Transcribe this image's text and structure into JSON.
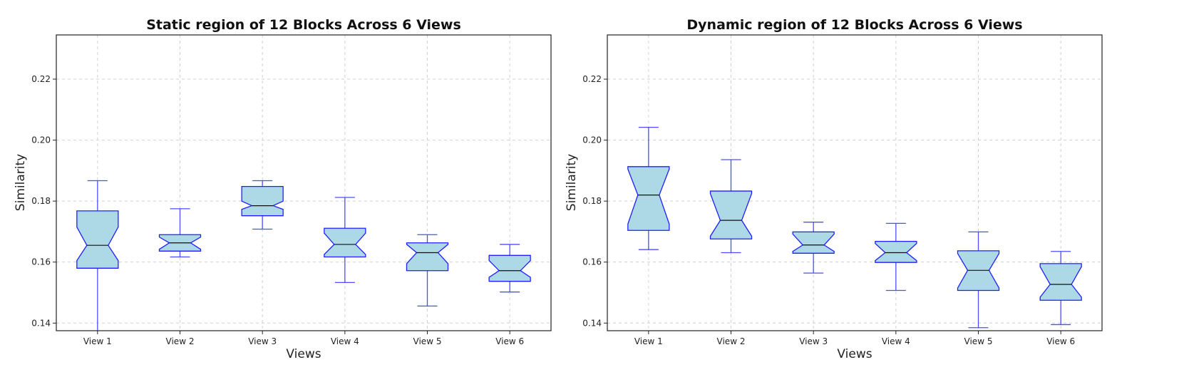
{
  "chart_data": [
    {
      "type": "box",
      "notched": true,
      "title": "Static region of 12 Blocks Across 6 Views",
      "xlabel": "Views",
      "ylabel": "Similarity",
      "categories": [
        "View 1",
        "View 2",
        "View 3",
        "View 4",
        "View 5",
        "View 6"
      ],
      "yticks": [
        0.14,
        0.16,
        0.18,
        0.2,
        0.22
      ],
      "ytick_labels": [
        "0.14",
        "0.16",
        "0.18",
        "0.20",
        "0.22"
      ],
      "ylim": [
        0.1375,
        0.2345
      ],
      "grid": true,
      "boxes": [
        {
          "category": "View 1",
          "whisker_low": 0.137,
          "q1": 0.158,
          "median": 0.1655,
          "q3": 0.1768,
          "whisker_high": 0.1867,
          "notch_low": 0.1605,
          "notch_high": 0.1715
        },
        {
          "category": "View 2",
          "whisker_low": 0.1617,
          "q1": 0.1636,
          "median": 0.1663,
          "q3": 0.169,
          "whisker_high": 0.1775,
          "notch_low": 0.1642,
          "notch_high": 0.1682
        },
        {
          "category": "View 3",
          "whisker_low": 0.1708,
          "q1": 0.1752,
          "median": 0.1785,
          "q3": 0.1848,
          "whisker_high": 0.1867,
          "notch_low": 0.1773,
          "notch_high": 0.18
        },
        {
          "category": "View 4",
          "whisker_low": 0.1533,
          "q1": 0.1617,
          "median": 0.1658,
          "q3": 0.1711,
          "whisker_high": 0.1812,
          "notch_low": 0.1625,
          "notch_high": 0.1695
        },
        {
          "category": "View 5",
          "whisker_low": 0.1456,
          "q1": 0.1572,
          "median": 0.1631,
          "q3": 0.1663,
          "whisker_high": 0.169,
          "notch_low": 0.1595,
          "notch_high": 0.1658
        },
        {
          "category": "View 6",
          "whisker_low": 0.1502,
          "q1": 0.1537,
          "median": 0.1572,
          "q3": 0.1622,
          "whisker_high": 0.1658,
          "notch_low": 0.155,
          "notch_high": 0.1605
        }
      ]
    },
    {
      "type": "box",
      "notched": true,
      "title": "Dynamic region of 12 Blocks Across 6 Views",
      "xlabel": "Views",
      "ylabel": "Similarity",
      "categories": [
        "View 1",
        "View 2",
        "View 3",
        "View 4",
        "View 5",
        "View 6"
      ],
      "yticks": [
        0.14,
        0.16,
        0.18,
        0.2,
        0.22
      ],
      "ytick_labels": [
        "0.14",
        "0.16",
        "0.18",
        "0.20",
        "0.22"
      ],
      "ylim": [
        0.1375,
        0.2345
      ],
      "grid": true,
      "boxes": [
        {
          "category": "View 1",
          "whisker_low": 0.1641,
          "q1": 0.1704,
          "median": 0.182,
          "q3": 0.1913,
          "whisker_high": 0.2042,
          "notch_low": 0.1725,
          "notch_high": 0.1905
        },
        {
          "category": "View 2",
          "whisker_low": 0.1631,
          "q1": 0.1676,
          "median": 0.1737,
          "q3": 0.1833,
          "whisker_high": 0.1936,
          "notch_low": 0.1685,
          "notch_high": 0.1825
        },
        {
          "category": "View 3",
          "whisker_low": 0.1564,
          "q1": 0.1629,
          "median": 0.1656,
          "q3": 0.1699,
          "whisker_high": 0.1731,
          "notch_low": 0.1635,
          "notch_high": 0.1692
        },
        {
          "category": "View 4",
          "whisker_low": 0.1507,
          "q1": 0.1599,
          "median": 0.1631,
          "q3": 0.1668,
          "whisker_high": 0.1727,
          "notch_low": 0.1605,
          "notch_high": 0.1661
        },
        {
          "category": "View 5",
          "whisker_low": 0.1385,
          "q1": 0.1507,
          "median": 0.1573,
          "q3": 0.1637,
          "whisker_high": 0.1699,
          "notch_low": 0.1515,
          "notch_high": 0.1628
        },
        {
          "category": "View 6",
          "whisker_low": 0.1395,
          "q1": 0.1475,
          "median": 0.1527,
          "q3": 0.1595,
          "whisker_high": 0.1635,
          "notch_low": 0.1485,
          "notch_high": 0.1585
        }
      ]
    }
  ],
  "style": {
    "box_fill": "#add8e6",
    "box_edge": "#1f1fff",
    "whisker_color": "#4d4dff",
    "median_color": "#111111"
  }
}
